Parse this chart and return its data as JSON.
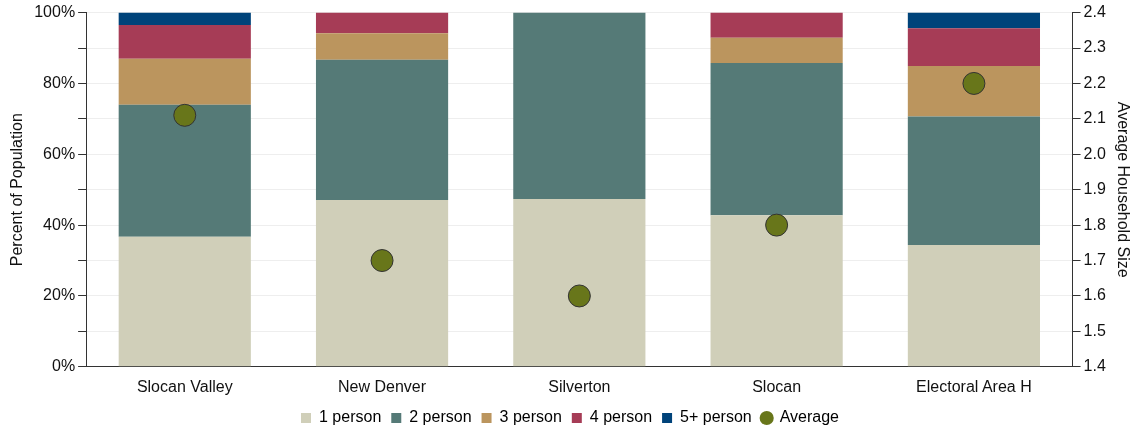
{
  "chart_data": {
    "type": "bar",
    "stacked": true,
    "ylabel": "Percent of Population",
    "y2label": "Average Household Size",
    "categories": [
      "Slocan Valley",
      "New Denver",
      "Silverton",
      "Slocan",
      "Electoral Area H"
    ],
    "series": [
      {
        "name": "1 person",
        "color": "#d0cfb9",
        "values": [
          36.7,
          47.1,
          47.4,
          42.8,
          34.4
        ]
      },
      {
        "name": "2 person",
        "color": "#557a77",
        "values": [
          37.3,
          39.6,
          52.6,
          43.0,
          36.3
        ]
      },
      {
        "name": "3 person",
        "color": "#bb955e",
        "values": [
          13.0,
          7.5,
          null,
          7.1,
          14.2
        ]
      },
      {
        "name": "4 person",
        "color": "#a63c56",
        "values": [
          9.5,
          5.8,
          null,
          7.1,
          10.7
        ]
      },
      {
        "name": "5+ person",
        "color": "#00437a",
        "values": [
          3.5,
          null,
          null,
          null,
          4.4
        ]
      },
      {
        "name": "Average",
        "type": "scatter",
        "axis": "y2",
        "color": "#68761a",
        "x": [
          "Slocan Valley",
          "New Denver",
          "Silverton",
          "Slocan",
          "Electoral Area H"
        ],
        "values": [
          2.11,
          1.7,
          1.6,
          1.8,
          2.2
        ]
      }
    ],
    "ylim": [
      0,
      100
    ],
    "yticks": [
      {
        "value": 0,
        "label": "0%"
      },
      {
        "value": 10,
        "label": null
      },
      {
        "value": 20,
        "label": "20%"
      },
      {
        "value": 30,
        "label": null
      },
      {
        "value": 40,
        "label": "40%"
      },
      {
        "value": 50,
        "label": null
      },
      {
        "value": 60,
        "label": "60%"
      },
      {
        "value": 70,
        "label": null
      },
      {
        "value": 80,
        "label": "80%"
      },
      {
        "value": 90,
        "label": null
      },
      {
        "value": 100,
        "label": "100%"
      }
    ],
    "y2lim": [
      1.4,
      2.4
    ],
    "y2ticks": [
      {
        "value": 1.4,
        "label": "1.4"
      },
      {
        "value": 1.5,
        "label": "1.5"
      },
      {
        "value": 1.6,
        "label": "1.6"
      },
      {
        "value": 1.7,
        "label": "1.7"
      },
      {
        "value": 1.8,
        "label": "1.8"
      },
      {
        "value": 1.9,
        "label": "1.9"
      },
      {
        "value": 2.0,
        "label": "2.0"
      },
      {
        "value": 2.1,
        "label": "2.1"
      },
      {
        "value": 2.2,
        "label": "2.2"
      },
      {
        "value": 2.3,
        "label": "2.3"
      },
      {
        "value": 2.4,
        "label": "2.4"
      }
    ],
    "grid": "y",
    "legend": "bottom",
    "marker": "circle"
  }
}
